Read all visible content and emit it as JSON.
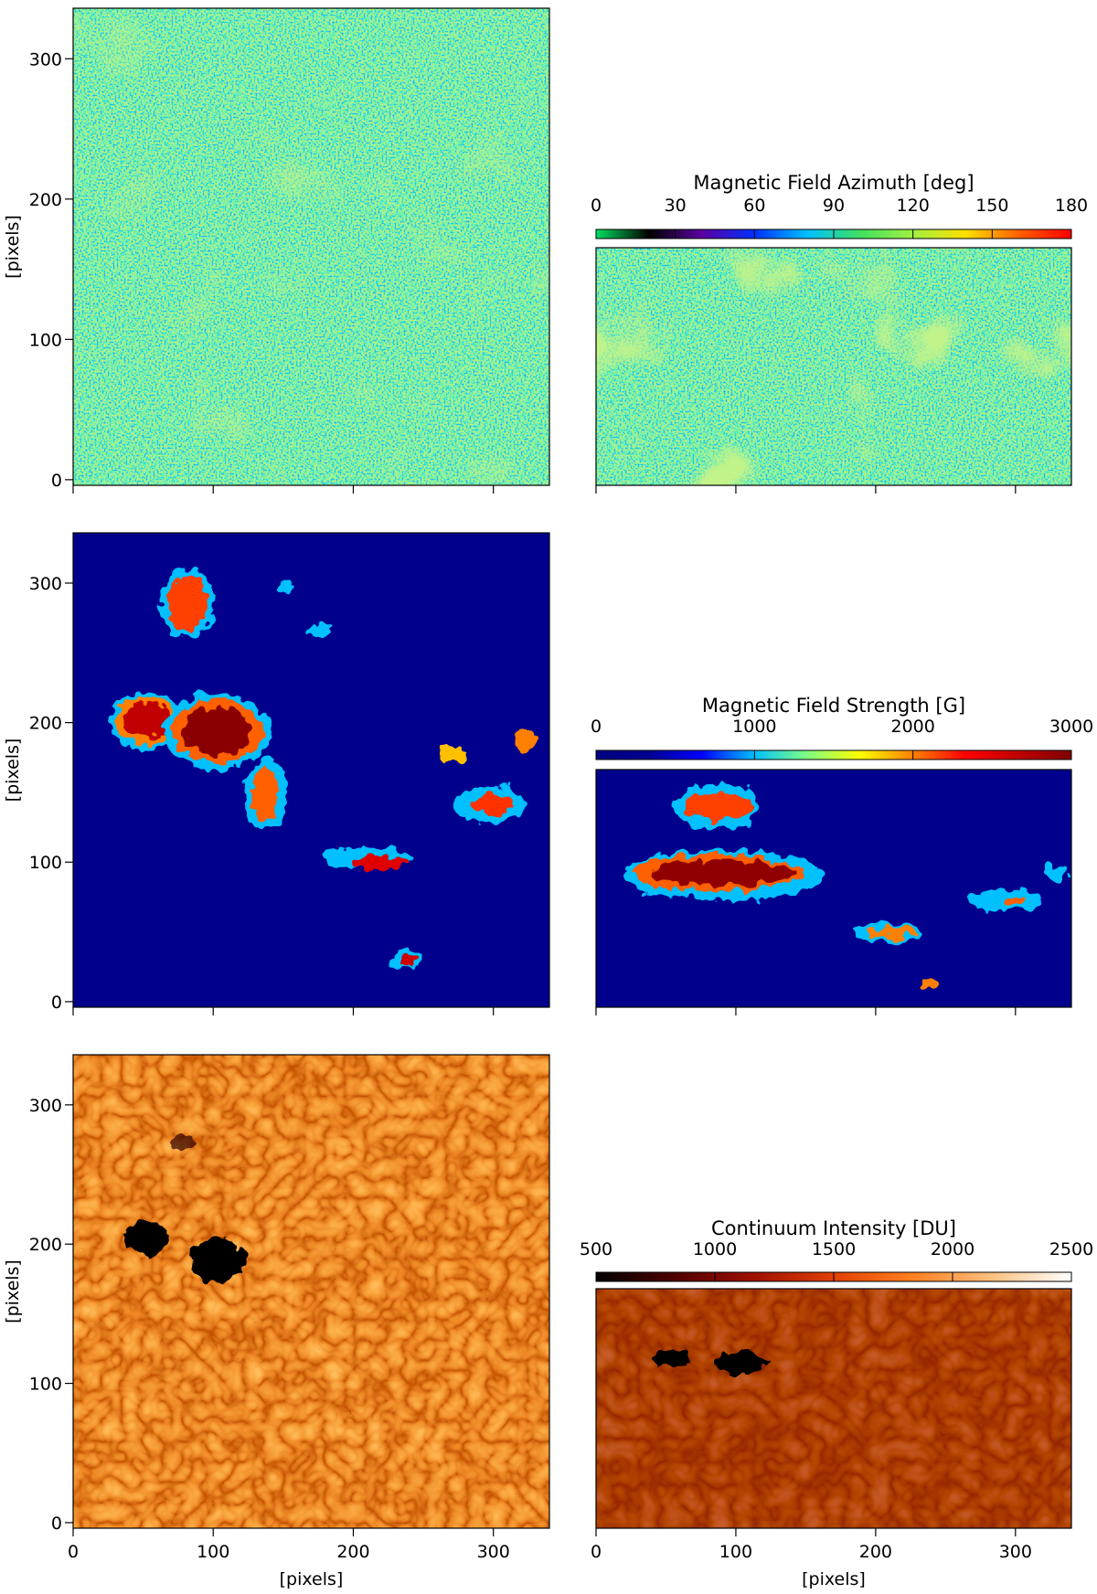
{
  "chart_data": [
    {
      "type": "image",
      "xlim": [
        0,
        340
      ],
      "ylim": [
        -4,
        336
      ],
      "xticks": [
        0,
        100,
        200,
        300
      ],
      "yticks": [
        0,
        100,
        200,
        300
      ],
      "ylabel": "[pixels]",
      "show_xtick_labels": false
    },
    {
      "type": "image",
      "xlim": [
        0,
        340
      ],
      "xticks": [
        0,
        100,
        200,
        300
      ],
      "show_xtick_labels": false,
      "colorbar": {
        "label": "Magnetic Field Azimuth [deg]",
        "lim": [
          0,
          180
        ],
        "ticks": [
          0,
          30,
          60,
          90,
          120,
          150,
          180
        ],
        "colormap": [
          "#00e060",
          "#000000",
          "#5a00a0",
          "#0030ff",
          "#00c0ff",
          "#40e060",
          "#a0f040",
          "#ffe000",
          "#ff6000",
          "#ff0000"
        ]
      }
    },
    {
      "type": "image",
      "xlim": [
        0,
        340
      ],
      "ylim": [
        -4,
        336
      ],
      "xticks": [
        0,
        100,
        200,
        300
      ],
      "yticks": [
        0,
        100,
        200,
        300
      ],
      "ylabel": "[pixels]",
      "show_xtick_labels": false
    },
    {
      "type": "image",
      "xlim": [
        0,
        340
      ],
      "xticks": [
        0,
        100,
        200,
        300
      ],
      "show_xtick_labels": false,
      "colorbar": {
        "label": "Magnetic Field Strength [G]",
        "lim": [
          0,
          3000
        ],
        "ticks": [
          0,
          1000,
          2000,
          3000
        ],
        "colormap": [
          "#00007f",
          "#00008f",
          "#0000ff",
          "#00c0ff",
          "#80ff80",
          "#ffff00",
          "#ff8000",
          "#ff0000",
          "#c00000",
          "#800000"
        ]
      }
    },
    {
      "type": "image",
      "xlim": [
        0,
        340
      ],
      "ylim": [
        -4,
        336
      ],
      "xticks": [
        0,
        100,
        200,
        300
      ],
      "yticks": [
        0,
        100,
        200,
        300
      ],
      "ylabel": "[pixels]",
      "xlabel": "[pixels]",
      "show_xtick_labels": true
    },
    {
      "type": "image",
      "xlim": [
        0,
        340
      ],
      "xticks": [
        0,
        100,
        200,
        300
      ],
      "xlabel": "[pixels]",
      "show_xtick_labels": true,
      "colorbar": {
        "label": "Continuum Intensity [DU]",
        "lim": [
          500,
          2500
        ],
        "ticks": [
          500,
          1000,
          1500,
          2000,
          2500
        ],
        "colormap": [
          "#000000",
          "#500000",
          "#a01000",
          "#e04000",
          "#ff8020",
          "#ffc080",
          "#ffffff"
        ]
      }
    }
  ]
}
